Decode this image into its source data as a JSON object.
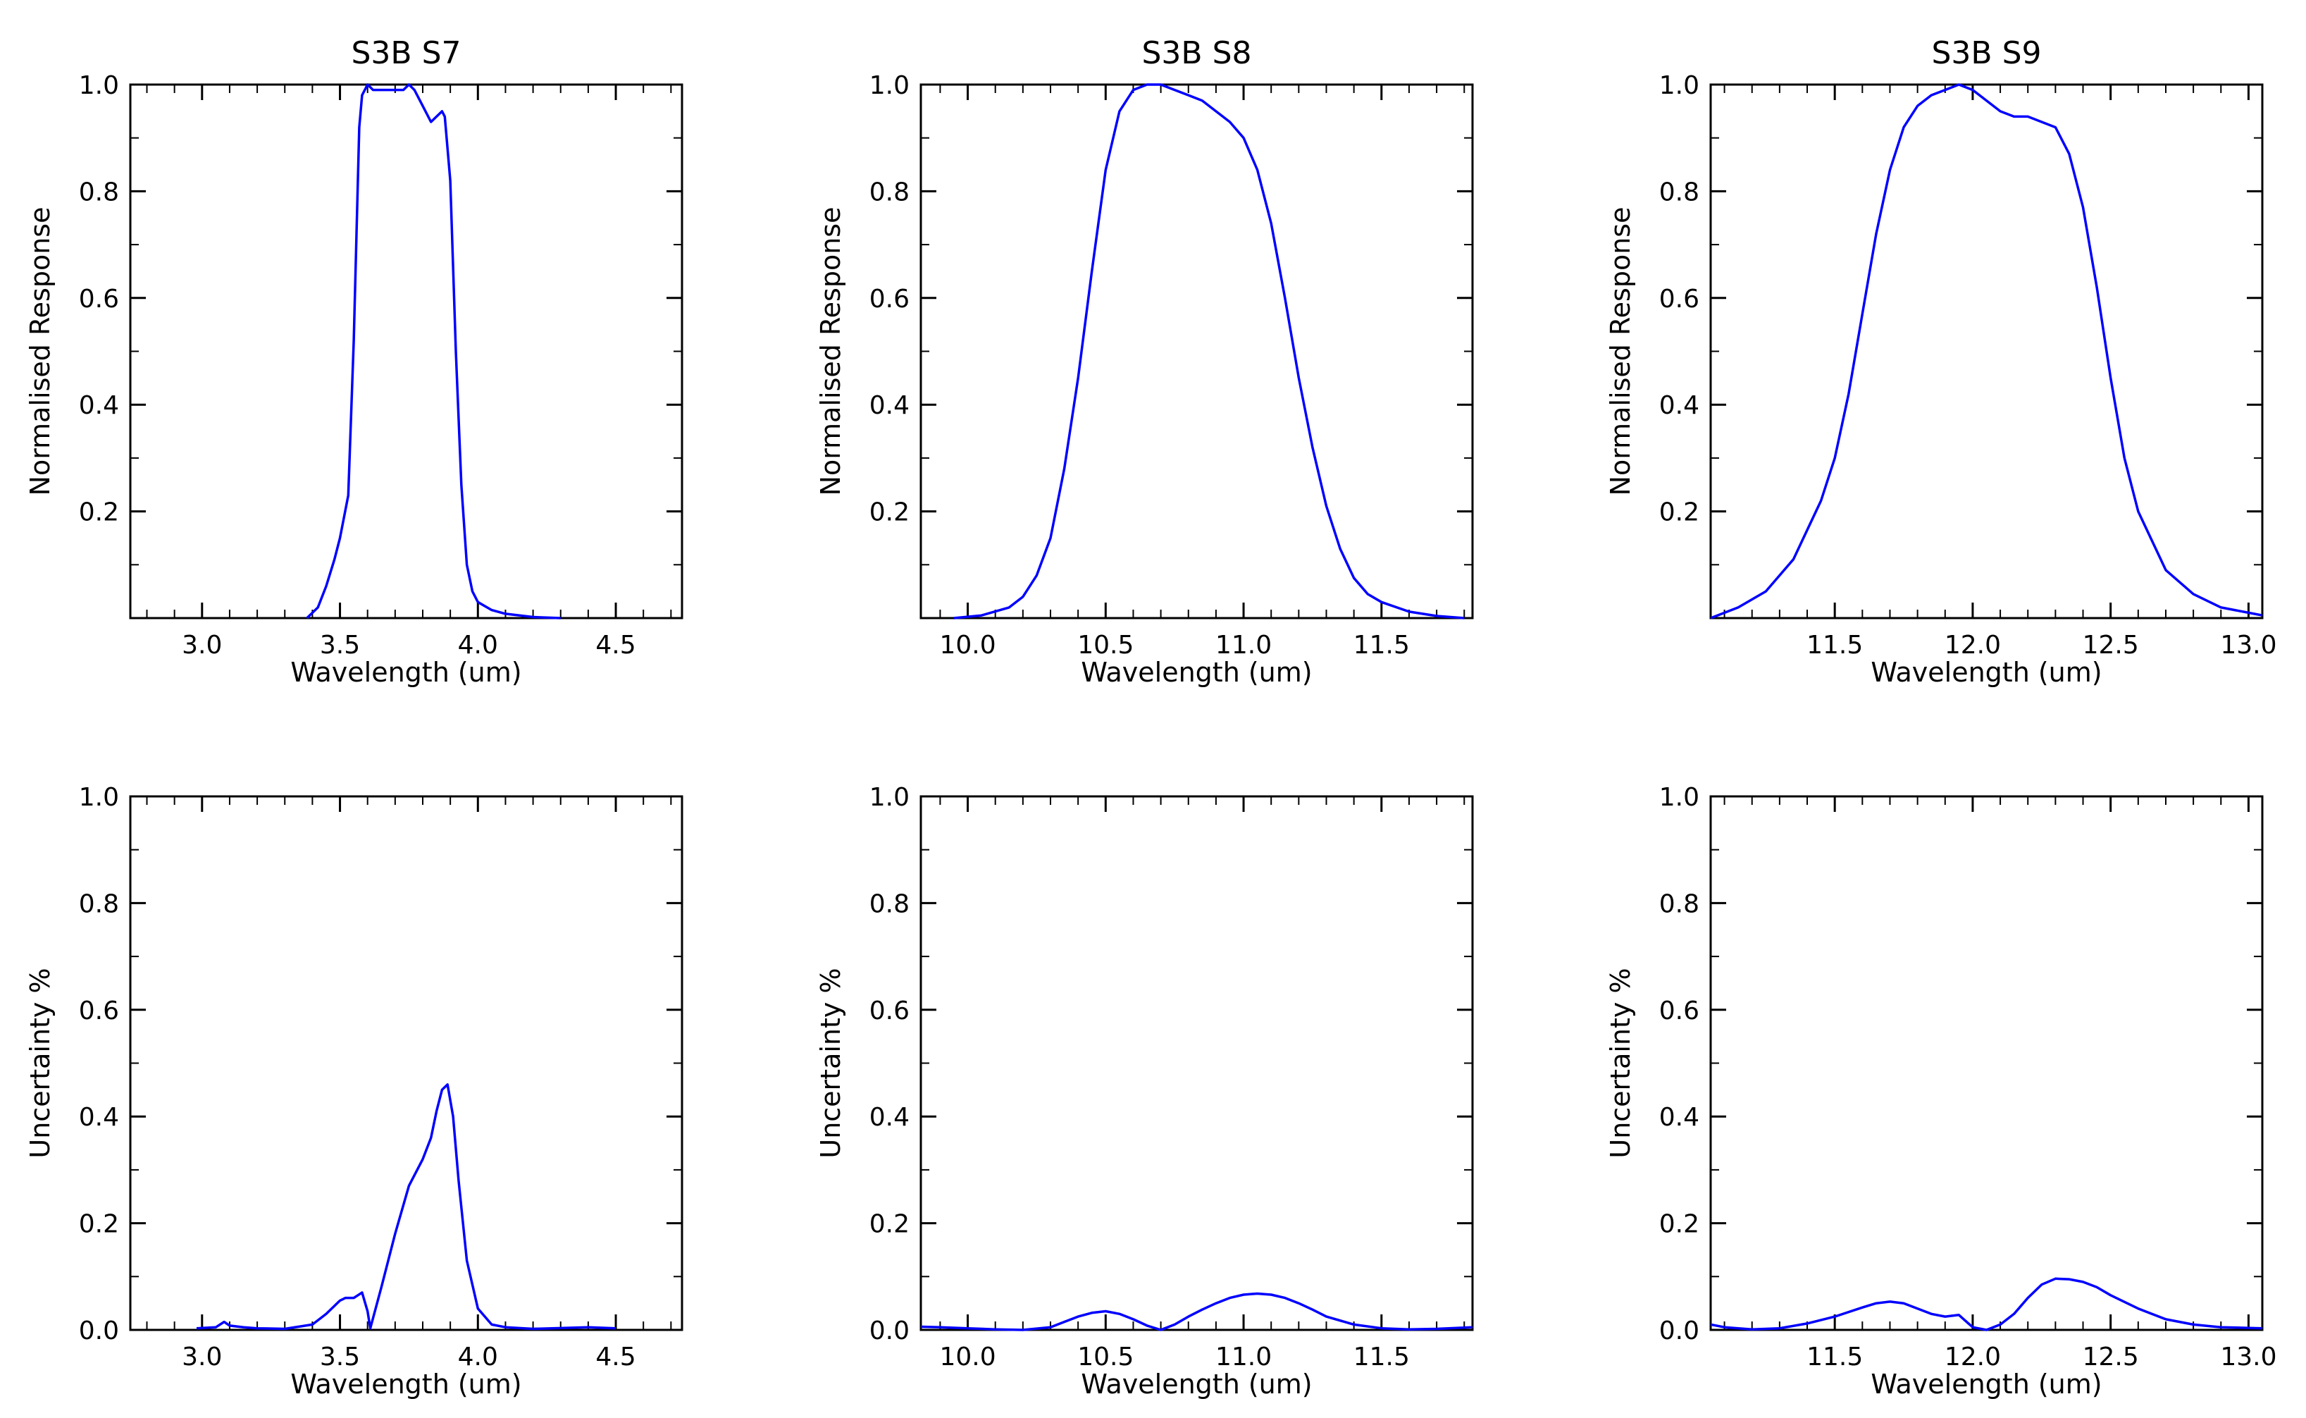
{
  "figure": {
    "line_color": "#0000ff",
    "axis_color": "#000000",
    "background": "#ffffff"
  },
  "chart_data": [
    {
      "id": "s7-response",
      "type": "line",
      "title": "S3B S7",
      "xlabel": "Wavelength (um)",
      "ylabel": "Normalised Response",
      "xlim": [
        2.74,
        4.74
      ],
      "ylim": [
        0,
        1.0
      ],
      "xticks": [
        "3.0",
        "3.5",
        "4.0",
        "4.5"
      ],
      "xtick_values": [
        3.0,
        3.5,
        4.0,
        4.5
      ],
      "yticks": [
        "0.2",
        "0.4",
        "0.6",
        "0.8",
        "1.0"
      ],
      "ytick_values": [
        0.2,
        0.4,
        0.6,
        0.8,
        1.0
      ],
      "x": [
        3.38,
        3.42,
        3.45,
        3.48,
        3.5,
        3.53,
        3.55,
        3.57,
        3.58,
        3.6,
        3.62,
        3.65,
        3.68,
        3.7,
        3.73,
        3.75,
        3.77,
        3.8,
        3.83,
        3.85,
        3.87,
        3.88,
        3.9,
        3.92,
        3.94,
        3.96,
        3.98,
        4.0,
        4.05,
        4.1,
        4.2,
        4.3
      ],
      "y": [
        0.0,
        0.02,
        0.06,
        0.11,
        0.15,
        0.23,
        0.52,
        0.92,
        0.98,
        1.0,
        0.99,
        0.99,
        0.99,
        0.99,
        0.99,
        1.0,
        0.99,
        0.96,
        0.93,
        0.94,
        0.95,
        0.94,
        0.82,
        0.5,
        0.25,
        0.1,
        0.05,
        0.03,
        0.015,
        0.008,
        0.002,
        0.0
      ]
    },
    {
      "id": "s8-response",
      "type": "line",
      "title": "S3B S8",
      "xlabel": "Wavelength (um)",
      "ylabel": "Normalised Response",
      "xlim": [
        9.83,
        11.83
      ],
      "ylim": [
        0,
        1.0
      ],
      "xticks": [
        "10.0",
        "10.5",
        "11.0",
        "11.5"
      ],
      "xtick_values": [
        10.0,
        10.5,
        11.0,
        11.5
      ],
      "yticks": [
        "0.2",
        "0.4",
        "0.6",
        "0.8",
        "1.0"
      ],
      "ytick_values": [
        0.2,
        0.4,
        0.6,
        0.8,
        1.0
      ],
      "x": [
        9.95,
        10.05,
        10.15,
        10.2,
        10.25,
        10.3,
        10.35,
        10.4,
        10.45,
        10.5,
        10.55,
        10.6,
        10.65,
        10.7,
        10.75,
        10.8,
        10.85,
        10.9,
        10.95,
        11.0,
        11.05,
        11.1,
        11.15,
        11.2,
        11.25,
        11.3,
        11.35,
        11.4,
        11.45,
        11.5,
        11.6,
        11.7,
        11.8
      ],
      "y": [
        0.0,
        0.005,
        0.02,
        0.04,
        0.08,
        0.15,
        0.28,
        0.45,
        0.65,
        0.84,
        0.95,
        0.99,
        1.0,
        1.0,
        0.99,
        0.98,
        0.97,
        0.95,
        0.93,
        0.9,
        0.84,
        0.74,
        0.6,
        0.45,
        0.32,
        0.21,
        0.13,
        0.075,
        0.045,
        0.03,
        0.012,
        0.004,
        0.0
      ]
    },
    {
      "id": "s9-response",
      "type": "line",
      "title": "S3B S9",
      "xlabel": "Wavelength (um)",
      "ylabel": "Normalised Response",
      "xlim": [
        11.05,
        13.05
      ],
      "ylim": [
        0,
        1.0
      ],
      "xticks": [
        "11.5",
        "12.0",
        "12.5",
        "13.0"
      ],
      "xtick_values": [
        11.5,
        12.0,
        12.5,
        13.0
      ],
      "yticks": [
        "0.2",
        "0.4",
        "0.6",
        "0.8",
        "1.0"
      ],
      "ytick_values": [
        0.2,
        0.4,
        0.6,
        0.8,
        1.0
      ],
      "x": [
        11.05,
        11.15,
        11.25,
        11.35,
        11.45,
        11.5,
        11.55,
        11.6,
        11.65,
        11.7,
        11.75,
        11.8,
        11.85,
        11.9,
        11.95,
        12.0,
        12.05,
        12.1,
        12.15,
        12.2,
        12.25,
        12.3,
        12.35,
        12.4,
        12.45,
        12.5,
        12.55,
        12.6,
        12.7,
        12.8,
        12.9,
        13.0,
        13.05
      ],
      "y": [
        0.0,
        0.02,
        0.05,
        0.11,
        0.22,
        0.3,
        0.42,
        0.57,
        0.72,
        0.84,
        0.92,
        0.96,
        0.98,
        0.99,
        1.0,
        0.99,
        0.97,
        0.95,
        0.94,
        0.94,
        0.93,
        0.92,
        0.87,
        0.77,
        0.62,
        0.45,
        0.3,
        0.2,
        0.09,
        0.045,
        0.02,
        0.01,
        0.005
      ]
    },
    {
      "id": "s7-uncertainty",
      "type": "line",
      "title": "",
      "xlabel": "Wavelength (um)",
      "ylabel": "Uncertainty %",
      "xlim": [
        2.74,
        4.74
      ],
      "ylim": [
        0,
        1.0
      ],
      "xticks": [
        "3.0",
        "3.5",
        "4.0",
        "4.5"
      ],
      "xtick_values": [
        3.0,
        3.5,
        4.0,
        4.5
      ],
      "yticks": [
        "0.0",
        "0.2",
        "0.4",
        "0.6",
        "0.8",
        "1.0"
      ],
      "ytick_values": [
        0.0,
        0.2,
        0.4,
        0.6,
        0.8,
        1.0
      ],
      "x": [
        2.98,
        3.05,
        3.08,
        3.1,
        3.15,
        3.2,
        3.3,
        3.4,
        3.45,
        3.5,
        3.52,
        3.55,
        3.58,
        3.6,
        3.61,
        3.65,
        3.7,
        3.75,
        3.8,
        3.83,
        3.85,
        3.87,
        3.89,
        3.91,
        3.93,
        3.96,
        4.0,
        4.05,
        4.1,
        4.2,
        4.4,
        4.5
      ],
      "y": [
        0.003,
        0.005,
        0.015,
        0.008,
        0.005,
        0.003,
        0.002,
        0.01,
        0.03,
        0.055,
        0.06,
        0.06,
        0.07,
        0.035,
        0.003,
        0.08,
        0.18,
        0.27,
        0.32,
        0.36,
        0.41,
        0.45,
        0.46,
        0.4,
        0.28,
        0.13,
        0.04,
        0.01,
        0.005,
        0.002,
        0.005,
        0.003
      ]
    },
    {
      "id": "s8-uncertainty",
      "type": "line",
      "title": "",
      "xlabel": "Wavelength (um)",
      "ylabel": "Uncertainty %",
      "xlim": [
        9.83,
        11.83
      ],
      "ylim": [
        0,
        1.0
      ],
      "xticks": [
        "10.0",
        "10.5",
        "11.0",
        "11.5"
      ],
      "xtick_values": [
        10.0,
        10.5,
        11.0,
        11.5
      ],
      "yticks": [
        "0.0",
        "0.2",
        "0.4",
        "0.6",
        "0.8",
        "1.0"
      ],
      "ytick_values": [
        0.0,
        0.2,
        0.4,
        0.6,
        0.8,
        1.0
      ],
      "x": [
        9.83,
        9.9,
        10.0,
        10.1,
        10.2,
        10.3,
        10.35,
        10.4,
        10.45,
        10.5,
        10.55,
        10.6,
        10.65,
        10.7,
        10.75,
        10.8,
        10.85,
        10.9,
        10.95,
        11.0,
        11.05,
        11.1,
        11.15,
        11.2,
        11.25,
        11.3,
        11.4,
        11.5,
        11.6,
        11.7,
        11.83
      ],
      "y": [
        0.006,
        0.005,
        0.003,
        0.001,
        0.0,
        0.005,
        0.015,
        0.025,
        0.032,
        0.035,
        0.03,
        0.02,
        0.008,
        0.0,
        0.01,
        0.025,
        0.038,
        0.05,
        0.06,
        0.066,
        0.068,
        0.066,
        0.06,
        0.05,
        0.038,
        0.025,
        0.01,
        0.003,
        0.001,
        0.002,
        0.005
      ]
    },
    {
      "id": "s9-uncertainty",
      "type": "line",
      "title": "",
      "xlabel": "Wavelength (um)",
      "ylabel": "Uncertainty %",
      "xlim": [
        11.05,
        13.05
      ],
      "ylim": [
        0,
        1.0
      ],
      "xticks": [
        "11.5",
        "12.0",
        "12.5",
        "13.0"
      ],
      "xtick_values": [
        11.5,
        12.0,
        12.5,
        13.0
      ],
      "yticks": [
        "0.0",
        "0.2",
        "0.4",
        "0.6",
        "0.8",
        "1.0"
      ],
      "ytick_values": [
        0.0,
        0.2,
        0.4,
        0.6,
        0.8,
        1.0
      ],
      "x": [
        11.05,
        11.1,
        11.2,
        11.3,
        11.4,
        11.5,
        11.6,
        11.65,
        11.7,
        11.75,
        11.8,
        11.85,
        11.9,
        11.95,
        12.0,
        12.05,
        12.1,
        12.15,
        12.2,
        12.25,
        12.3,
        12.35,
        12.4,
        12.45,
        12.5,
        12.6,
        12.7,
        12.8,
        12.9,
        13.05
      ],
      "y": [
        0.01,
        0.005,
        0.001,
        0.003,
        0.012,
        0.025,
        0.042,
        0.05,
        0.053,
        0.05,
        0.04,
        0.03,
        0.025,
        0.028,
        0.005,
        0.0,
        0.01,
        0.03,
        0.06,
        0.085,
        0.096,
        0.095,
        0.09,
        0.08,
        0.065,
        0.04,
        0.02,
        0.01,
        0.005,
        0.003
      ]
    }
  ]
}
